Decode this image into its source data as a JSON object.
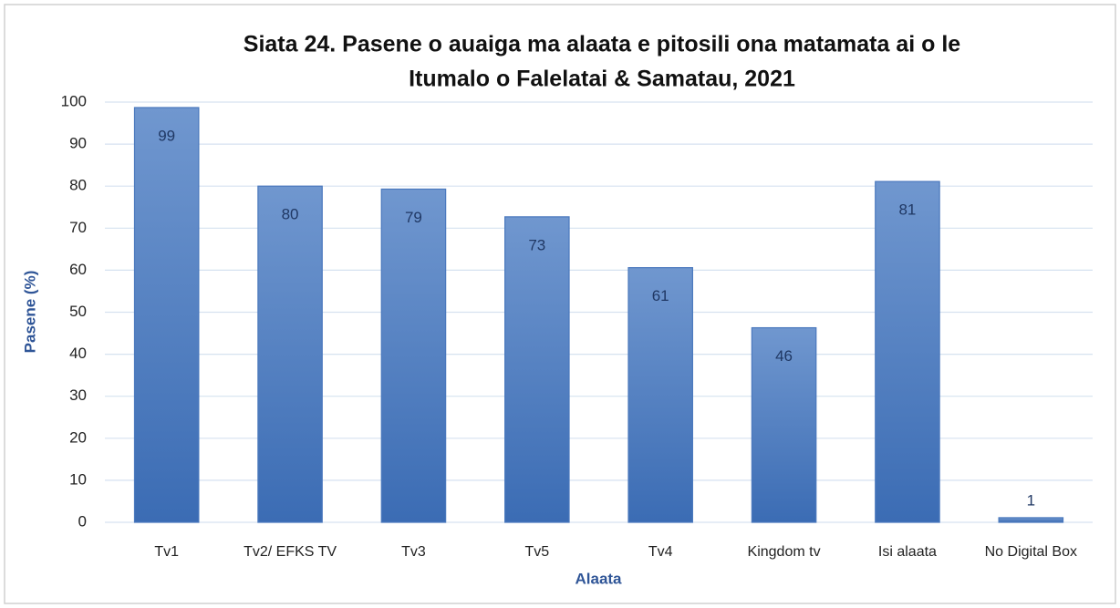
{
  "chart_data": {
    "type": "bar",
    "title": [
      "Siata 24. Pasene o auaiga ma alaata e pitosili ona matamata ai o le",
      "Itumalo o Falelatai & Samatau, 2021"
    ],
    "x_label": "Alaata",
    "y_label": "Pasene (%)",
    "categories": [
      "Tv1",
      "Tv2/ EFKS TV",
      "Tv3",
      "Tv5",
      "Tv4",
      "Kingdom tv",
      "Isi alaata",
      "No Digital Box"
    ],
    "values": [
      98.7,
      80,
      79.3,
      72.7,
      60.6,
      46.3,
      81.1,
      1.1
    ],
    "value_labels": [
      "99",
      "80",
      "79",
      "73",
      "61",
      "46",
      "81",
      "1"
    ],
    "color": "#4a78bd",
    "ylim": [
      0,
      100
    ],
    "yticks": [
      0,
      10,
      20,
      30,
      40,
      50,
      60,
      70,
      80,
      90,
      100
    ],
    "grid": true
  }
}
